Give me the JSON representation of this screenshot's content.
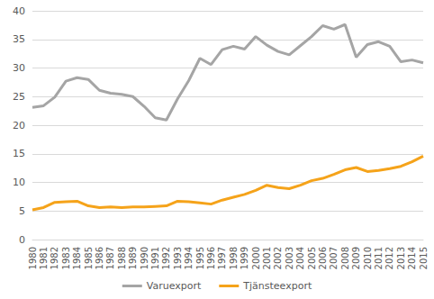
{
  "chart_data": {
    "type": "line",
    "categories": [
      "1980",
      "1981",
      "1982",
      "1983",
      "1984",
      "1985",
      "1986",
      "1987",
      "1988",
      "1989",
      "1990",
      "1991",
      "1992",
      "1993",
      "1994",
      "1995",
      "1996",
      "1997",
      "1998",
      "1999",
      "2000",
      "2001",
      "2002",
      "2003",
      "2004",
      "2005",
      "2006",
      "2007",
      "2008",
      "2009",
      "2010",
      "2011",
      "2012",
      "2013",
      "2014",
      "2015"
    ],
    "series": [
      {
        "name": "Varuexport",
        "color": "#a5a5a5",
        "values": [
          23.1,
          23.4,
          24.9,
          27.7,
          28.3,
          28.0,
          26.1,
          25.6,
          25.4,
          25.0,
          23.3,
          21.3,
          20.9,
          24.6,
          27.8,
          31.7,
          30.6,
          33.2,
          33.8,
          33.3,
          35.5,
          34.0,
          32.9,
          32.3,
          33.9,
          35.5,
          37.4,
          36.8,
          37.6,
          31.9,
          34.1,
          34.6,
          33.8,
          31.1,
          31.4,
          30.9
        ]
      },
      {
        "name": "Tjänsteexport",
        "color": "#f5a31a",
        "values": [
          5.2,
          5.6,
          6.5,
          6.6,
          6.7,
          5.9,
          5.6,
          5.7,
          5.6,
          5.7,
          5.7,
          5.8,
          5.9,
          6.7,
          6.6,
          6.4,
          6.2,
          6.9,
          7.4,
          7.9,
          8.6,
          9.5,
          9.1,
          8.9,
          9.5,
          10.3,
          10.7,
          11.4,
          12.2,
          12.6,
          11.9,
          12.1,
          12.4,
          12.8,
          13.6,
          14.6
        ]
      }
    ],
    "ylim": [
      0,
      40
    ],
    "yticks": [
      0,
      5,
      10,
      15,
      20,
      25,
      30,
      35,
      40
    ],
    "grid": true,
    "legend": "bottom"
  }
}
